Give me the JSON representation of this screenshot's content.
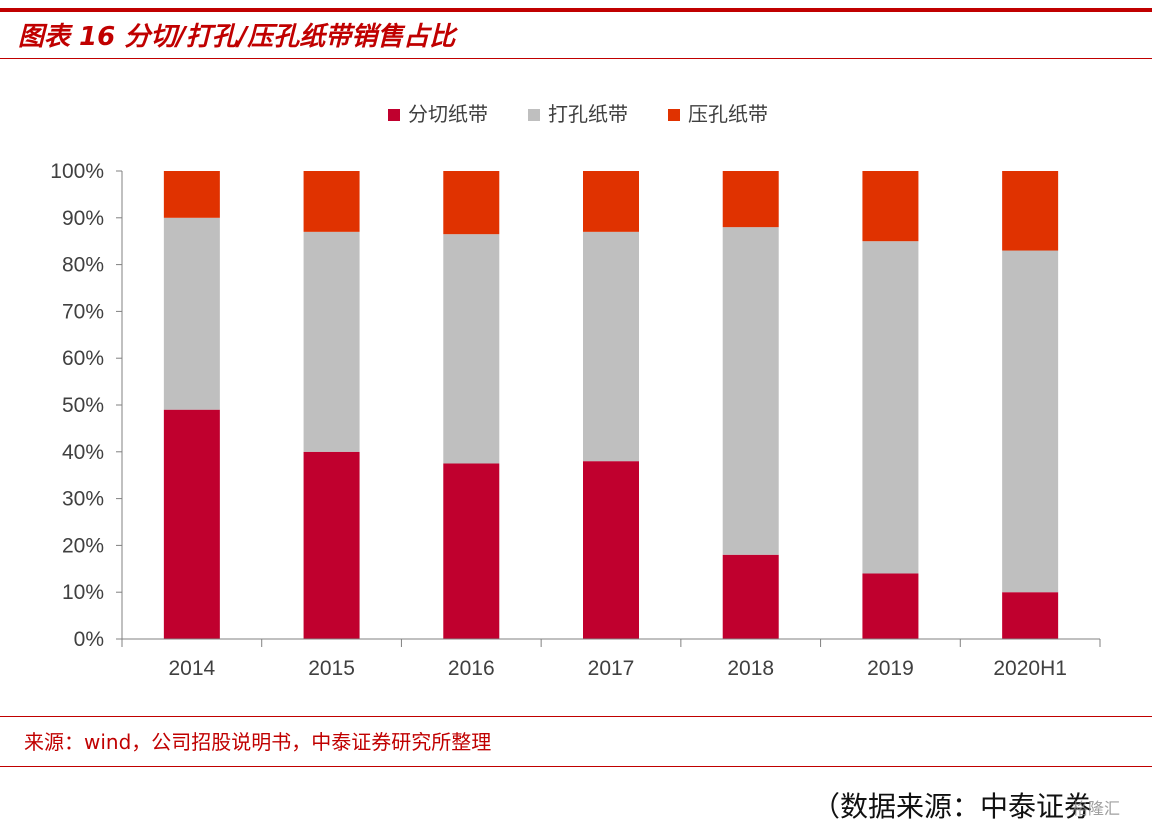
{
  "figure": {
    "title": "图表 16 分切/打孔/压孔纸带销售占比"
  },
  "footer": {
    "source": "来源：wind，公司招股说明书，中泰证券研究所整理",
    "data_source_note": "（数据来源：中泰证券",
    "watermark": "格隆汇"
  },
  "colors": {
    "accent": "#c00000",
    "series": [
      "#c0002e",
      "#bfbfbf",
      "#e03200"
    ]
  },
  "chart_data": {
    "type": "bar",
    "stacked": true,
    "categories": [
      "2014",
      "2015",
      "2016",
      "2017",
      "2018",
      "2019",
      "2020H1"
    ],
    "series": [
      {
        "name": "分切纸带",
        "values": [
          49,
          40,
          37.5,
          38,
          18,
          14,
          10
        ]
      },
      {
        "name": "打孔纸带",
        "values": [
          41,
          47,
          49,
          49,
          70,
          71,
          73
        ]
      },
      {
        "name": "压孔纸带",
        "values": [
          10,
          13,
          13.5,
          13,
          12,
          15,
          17
        ]
      }
    ],
    "y_ticks": [
      "0%",
      "10%",
      "20%",
      "30%",
      "40%",
      "50%",
      "60%",
      "70%",
      "80%",
      "90%",
      "100%"
    ],
    "ylim": [
      0,
      100
    ],
    "legend_position": "top",
    "grid": false
  }
}
